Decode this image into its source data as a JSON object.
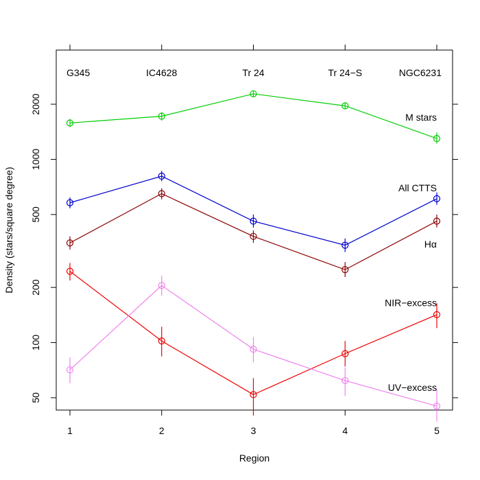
{
  "chart_data": {
    "type": "line",
    "xlabel": "Region",
    "ylabel": "Density (stars/square degree)",
    "y_scale": "log",
    "x": [
      1,
      2,
      3,
      4,
      5
    ],
    "xlim": [
      1,
      5
    ],
    "ylim": [
      42,
      4000
    ],
    "x_ticks": [
      "1",
      "2",
      "3",
      "4",
      "5"
    ],
    "y_ticks": [
      50,
      100,
      200,
      500,
      1000,
      2000
    ],
    "y_tick_labels": [
      "50",
      "100",
      "200",
      "500",
      "1000",
      "2000"
    ],
    "region_names": [
      "G345",
      "IC4628",
      "Tr 24",
      "Tr 24−S",
      "NGC6231"
    ],
    "grid": false,
    "series": [
      {
        "name": "M stars",
        "color": "#00cd00",
        "values": [
          1580,
          1720,
          2280,
          1960,
          1300
        ],
        "err_low": [
          1500,
          1630,
          2200,
          1890,
          1220
        ],
        "err_high": [
          1660,
          1810,
          2360,
          2030,
          1400
        ],
        "label_at": [
          5,
          1700
        ]
      },
      {
        "name": "All CTTS",
        "color": "#0000cd",
        "values": [
          580,
          810,
          460,
          340,
          610
        ],
        "err_low": [
          540,
          760,
          425,
          312,
          565
        ],
        "err_high": [
          620,
          865,
          500,
          370,
          660
        ],
        "label_at": [
          5,
          700
        ]
      },
      {
        "name": "Hα",
        "color": "#8b0000",
        "values": [
          350,
          650,
          380,
          250,
          460
        ],
        "err_low": [
          322,
          605,
          350,
          228,
          425
        ],
        "err_high": [
          380,
          695,
          410,
          275,
          500
        ],
        "label_at": [
          5,
          345
        ]
      },
      {
        "name": "NIR−excess",
        "color": "#ee0000",
        "values": [
          245,
          102,
          52,
          87,
          142
        ],
        "err_low": [
          218,
          84,
          40,
          74,
          120
        ],
        "err_high": [
          272,
          122,
          64,
          102,
          164
        ],
        "label_at": [
          5,
          165
        ]
      },
      {
        "name": "UV−excess",
        "color": "#ee82ee",
        "values": [
          71,
          205,
          92,
          62,
          45
        ],
        "err_low": [
          60,
          180,
          78,
          51,
          37
        ],
        "err_high": [
          83,
          232,
          107,
          73,
          56
        ],
        "label_at": [
          5,
          57
        ]
      }
    ]
  }
}
